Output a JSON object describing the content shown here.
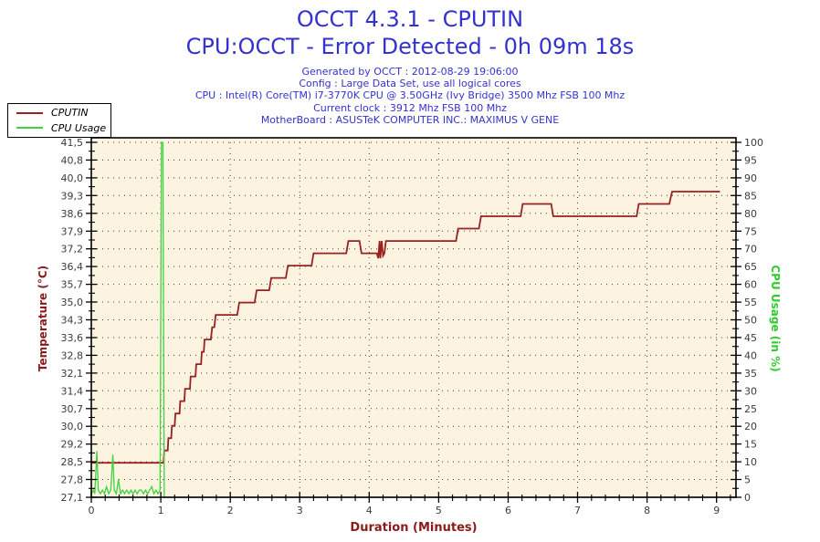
{
  "header": {
    "color": "#3432CF",
    "info_lines": [
      "Generated by OCCT : 2012-08-29 19:06:00",
      "Config : Large Data Set, use all logical cores",
      "CPU : Intel(R) Core(TM) i7-3770K CPU @ 3.50GHz (Ivy Bridge) 3500 Mhz FSB 100 Mhz",
      "Current clock : 3912 Mhz FSB 100 Mhz",
      "MotherBoard : ASUSTeK COMPUTER INC.: MAXIMUS V GENE"
    ]
  },
  "chart_data": {
    "type": "line",
    "title": "OCCT 4.3.1 - CPUTIN",
    "subtitle": "CPU:OCCT - Error Detected - 0h 09m 18s",
    "xlabel": "Duration (Minutes)",
    "x_range": [
      0,
      9.28
    ],
    "x_ticks": [
      0,
      1,
      2,
      3,
      4,
      5,
      6,
      7,
      8,
      9
    ],
    "x_minor_step": 0.2,
    "plot_bg": "#FCF4E1",
    "grid_color": "#3F3F3F",
    "tick_text_color": "#3B3B3B",
    "frame_color": "#000000",
    "grid_on": true,
    "legend_position": "top-left",
    "left_axis": {
      "label": "Temperature (°C)",
      "color": "#8B1A1A",
      "range": [
        27.1,
        41.5
      ],
      "ticks": [
        {
          "v": 27.1,
          "label": "27,1"
        },
        {
          "v": 27.82,
          "label": "27,8"
        },
        {
          "v": 28.54,
          "label": "28,5"
        },
        {
          "v": 29.26,
          "label": "29,2"
        },
        {
          "v": 29.98,
          "label": "30,0"
        },
        {
          "v": 30.7,
          "label": "30,7"
        },
        {
          "v": 31.42,
          "label": "31,4"
        },
        {
          "v": 32.14,
          "label": "32,1"
        },
        {
          "v": 32.86,
          "label": "32,8"
        },
        {
          "v": 33.58,
          "label": "33,6"
        },
        {
          "v": 34.3,
          "label": "34,3"
        },
        {
          "v": 35.02,
          "label": "35,0"
        },
        {
          "v": 35.74,
          "label": "35,7"
        },
        {
          "v": 36.46,
          "label": "36,4"
        },
        {
          "v": 37.18,
          "label": "37,2"
        },
        {
          "v": 37.9,
          "label": "37,9"
        },
        {
          "v": 38.62,
          "label": "38,6"
        },
        {
          "v": 39.34,
          "label": "39,3"
        },
        {
          "v": 40.06,
          "label": "40,0"
        },
        {
          "v": 40.78,
          "label": "40,8"
        },
        {
          "v": 41.5,
          "label": "41,5"
        }
      ]
    },
    "right_axis": {
      "label": "CPU Usage (in %)",
      "color": "#2FCB2F",
      "range": [
        0,
        100
      ],
      "ticks": [
        0,
        5,
        10,
        15,
        20,
        25,
        30,
        35,
        40,
        45,
        50,
        55,
        60,
        65,
        70,
        75,
        80,
        85,
        90,
        95,
        100
      ]
    },
    "legend": {
      "items": [
        {
          "name": "CPUTIN",
          "color": "#9B2020"
        },
        {
          "name": "CPU Usage",
          "color": "#3FD33F"
        }
      ]
    },
    "series": [
      {
        "name": "CPUTIN",
        "axis": "left",
        "color": "#9B2020",
        "width": 1.8,
        "points": [
          [
            0,
            28.5
          ],
          [
            1.04,
            28.5
          ],
          [
            1.05,
            29
          ],
          [
            1.1,
            29
          ],
          [
            1.11,
            29.5
          ],
          [
            1.15,
            29.5
          ],
          [
            1.16,
            30
          ],
          [
            1.2,
            30
          ],
          [
            1.21,
            30.5
          ],
          [
            1.27,
            30.5
          ],
          [
            1.28,
            31
          ],
          [
            1.34,
            31
          ],
          [
            1.35,
            31.5
          ],
          [
            1.42,
            31.5
          ],
          [
            1.43,
            32
          ],
          [
            1.5,
            32
          ],
          [
            1.51,
            32.5
          ],
          [
            1.58,
            32.5
          ],
          [
            1.59,
            33
          ],
          [
            1.62,
            33
          ],
          [
            1.63,
            33.5
          ],
          [
            1.72,
            33.5
          ],
          [
            1.74,
            34
          ],
          [
            1.77,
            34
          ],
          [
            1.79,
            34.5
          ],
          [
            2.1,
            34.5
          ],
          [
            2.13,
            35
          ],
          [
            2.35,
            35
          ],
          [
            2.38,
            35.5
          ],
          [
            2.56,
            35.5
          ],
          [
            2.59,
            36
          ],
          [
            2.8,
            36
          ],
          [
            2.83,
            36.5
          ],
          [
            3.17,
            36.5
          ],
          [
            3.2,
            37
          ],
          [
            3.67,
            37
          ],
          [
            3.7,
            37.5
          ],
          [
            3.86,
            37.5
          ],
          [
            3.89,
            37
          ],
          [
            4.11,
            37
          ],
          [
            4.13,
            36.8
          ],
          [
            4.15,
            37.5
          ],
          [
            4.16,
            36.8
          ],
          [
            4.18,
            37.5
          ],
          [
            4.2,
            36.9
          ],
          [
            4.22,
            37
          ],
          [
            4.24,
            37.5
          ],
          [
            5.25,
            37.5
          ],
          [
            5.28,
            38
          ],
          [
            5.58,
            38
          ],
          [
            5.61,
            38.5
          ],
          [
            6.18,
            38.5
          ],
          [
            6.21,
            39
          ],
          [
            6.62,
            39
          ],
          [
            6.65,
            38.5
          ],
          [
            7.85,
            38.5
          ],
          [
            7.88,
            39
          ],
          [
            8.32,
            39
          ],
          [
            8.36,
            39.5
          ],
          [
            9.05,
            39.5
          ]
        ]
      },
      {
        "name": "CPU Usage",
        "axis": "right",
        "color": "#3FD33F",
        "width": 1.3,
        "points": [
          [
            0,
            1
          ],
          [
            0.03,
            2
          ],
          [
            0.05,
            1
          ],
          [
            0.08,
            13
          ],
          [
            0.1,
            2
          ],
          [
            0.13,
            1
          ],
          [
            0.16,
            2
          ],
          [
            0.19,
            1
          ],
          [
            0.22,
            3
          ],
          [
            0.25,
            1
          ],
          [
            0.28,
            2
          ],
          [
            0.31,
            12
          ],
          [
            0.33,
            2
          ],
          [
            0.36,
            1
          ],
          [
            0.39,
            5
          ],
          [
            0.42,
            1
          ],
          [
            0.45,
            2
          ],
          [
            0.48,
            1
          ],
          [
            0.51,
            2
          ],
          [
            0.54,
            1
          ],
          [
            0.57,
            2
          ],
          [
            0.6,
            1
          ],
          [
            0.63,
            2
          ],
          [
            0.66,
            1
          ],
          [
            0.69,
            2
          ],
          [
            0.72,
            2
          ],
          [
            0.75,
            1
          ],
          [
            0.78,
            2
          ],
          [
            0.81,
            1
          ],
          [
            0.84,
            2
          ],
          [
            0.87,
            3
          ],
          [
            0.9,
            1
          ],
          [
            0.93,
            2
          ],
          [
            0.96,
            1
          ],
          [
            0.99,
            2
          ],
          [
            1.01,
            100
          ],
          [
            1.03,
            100
          ],
          [
            1.05,
            0
          ],
          [
            9.05,
            0
          ]
        ]
      }
    ]
  }
}
